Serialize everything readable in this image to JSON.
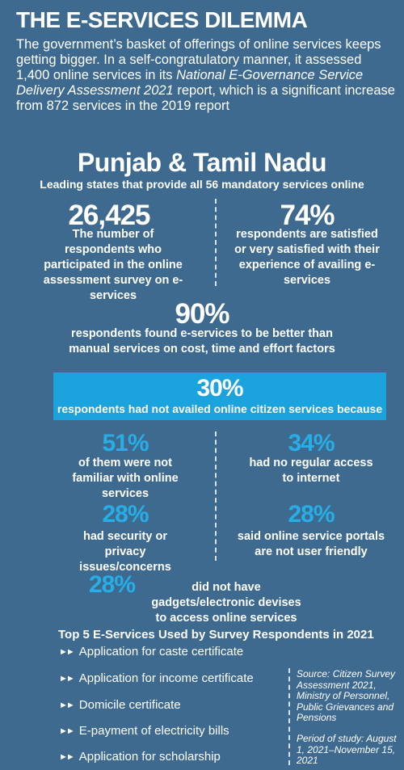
{
  "title": "THE E-SERVICES DILEMMA",
  "intro": {
    "part1": "The government’s basket of offerings of online services keeps getting bigger. In a self-congratulatory manner, it assessed 1,400 online services in its ",
    "report_name": "National E-Governance Service Delivery Assessment 2021",
    "part2": " report, which is a significant increase from 872 services in the 2019 report"
  },
  "leading": {
    "headline": "Punjab & Tamil Nadu",
    "caption": "Leading states that provide all 56 mandatory services online"
  },
  "stats_row1": [
    {
      "value": "26,425",
      "text": "The number of respondents who participated in the online assessment survey on e-services"
    },
    {
      "value": "74%",
      "text": "respondents are satisfied or very satisfied with their experience of availing e-services"
    }
  ],
  "stat_90": {
    "value": "90%",
    "text": "respondents found e-services to be better than manual services on cost, time and effort factors"
  },
  "banner": {
    "value": "30%",
    "text": "respondents had not availed online citizen services because"
  },
  "reasons": [
    {
      "value": "51%",
      "text": "of them were not familiar with online services"
    },
    {
      "value": "34%",
      "text": "had no regular access to internet"
    },
    {
      "value": "28%",
      "text": "had security or privacy issues/concerns"
    },
    {
      "value": "28%",
      "text": "said online service portals are not user friendly"
    }
  ],
  "reason_last": {
    "value": "28%",
    "text": "did not have gadgets/electronic devises to access online services"
  },
  "top5": {
    "heading": "Top 5 E-Services Used by Survey Respondents in 2021",
    "bullet_glyph": "►►",
    "items": [
      "Application for caste certificate",
      "Application for income certificate",
      "Domicile certificate",
      "E-payment of electricity bills",
      "Application for scholarship"
    ]
  },
  "source": {
    "text": "Source: Citizen Survey Assessment 2021, Ministry of Personnel, Public Grievances and Pensions",
    "period": "Period of study: August 1, 2021–November 15, 2021"
  },
  "colors": {
    "background": "#3e6a8f",
    "accent_blue": "#27aee6",
    "banner": "#1aa3dc",
    "text": "#ffffff"
  }
}
